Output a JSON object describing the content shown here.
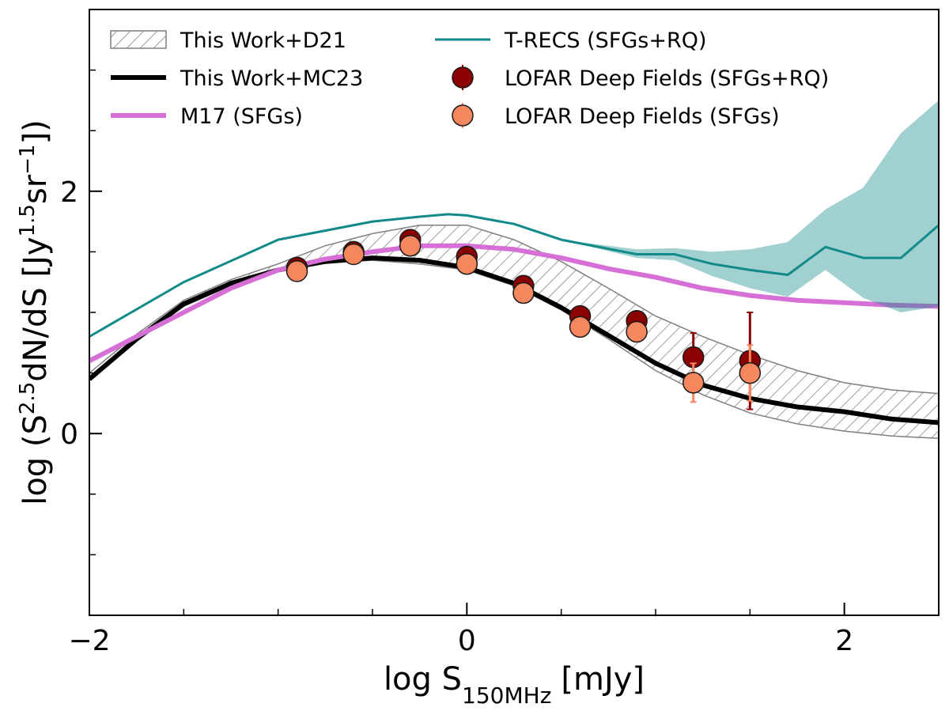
{
  "chart_data": {
    "type": "line",
    "xlabel_parts": [
      {
        "text": "log S"
      },
      {
        "text": "150MHz",
        "sub": true
      },
      {
        "text": "[mJy]"
      }
    ],
    "ylabel_parts": [
      {
        "text": "log (S"
      },
      {
        "text": "2.5",
        "sup": true
      },
      {
        "text": "dN/dS [Jy"
      },
      {
        "text": "1.5",
        "sup": true
      },
      {
        "text": "sr"
      },
      {
        "text": "−1",
        "sup": true
      },
      {
        "text": "])"
      }
    ],
    "xlim": [
      -2,
      2.5
    ],
    "ylim": [
      -1.5,
      3.5
    ],
    "xticks": [
      {
        "value": -2,
        "label": "−2"
      },
      0,
      2
    ],
    "yticks": [
      0,
      2
    ],
    "xminor_ticks": [
      -1.5,
      -1,
      -0.5,
      0.5,
      1,
      1.5
    ],
    "yminor_ticks": [
      -1,
      -0.5,
      0.5,
      1,
      1.5,
      2.5,
      3
    ],
    "legend": "upper left",
    "series": [
      {
        "name": "This Work+D21",
        "kind": "band",
        "color": "#7f7f7f",
        "x": [
          -2,
          -1.75,
          -1.5,
          -1.25,
          -1,
          -0.75,
          -0.5,
          -0.25,
          0,
          0.25,
          0.5,
          0.75,
          1,
          1.25,
          1.5,
          1.75,
          2,
          2.25,
          2.5
        ],
        "upper": [
          0.5,
          0.82,
          1.1,
          1.27,
          1.4,
          1.55,
          1.65,
          1.72,
          1.72,
          1.6,
          1.42,
          1.2,
          0.97,
          0.8,
          0.65,
          0.52,
          0.42,
          0.36,
          0.33
        ],
        "lower": [
          0.45,
          0.77,
          1.05,
          1.22,
          1.35,
          1.41,
          1.43,
          1.4,
          1.35,
          1.22,
          1.02,
          0.78,
          0.52,
          0.32,
          0.17,
          0.08,
          0.02,
          -0.02,
          -0.04
        ]
      },
      {
        "name": "This Work+MC23",
        "kind": "line",
        "color": "#000000",
        "x": [
          -2,
          -1.75,
          -1.5,
          -1.25,
          -1,
          -0.75,
          -0.5,
          -0.25,
          0,
          0.25,
          0.5,
          0.75,
          1,
          1.25,
          1.5,
          1.75,
          2,
          2.25,
          2.5
        ],
        "values": [
          0.45,
          0.78,
          1.07,
          1.24,
          1.35,
          1.42,
          1.45,
          1.43,
          1.37,
          1.24,
          1.04,
          0.81,
          0.58,
          0.4,
          0.29,
          0.22,
          0.18,
          0.12,
          0.09
        ]
      },
      {
        "name": "M17 (SFGs)",
        "kind": "line",
        "color": "#d670d6",
        "x": [
          -2,
          -1.75,
          -1.5,
          -1.25,
          -1,
          -0.75,
          -0.5,
          -0.25,
          0,
          0.25,
          0.5,
          0.75,
          1,
          1.25,
          1.5,
          1.75,
          2,
          2.25,
          2.5
        ],
        "values": [
          0.6,
          0.8,
          1.0,
          1.2,
          1.35,
          1.44,
          1.5,
          1.55,
          1.55,
          1.52,
          1.45,
          1.36,
          1.29,
          1.2,
          1.14,
          1.1,
          1.08,
          1.06,
          1.05
        ]
      },
      {
        "name": "T-RECS (SFGs+RQ)",
        "kind": "line",
        "color": "#138a8a",
        "x": [
          -2,
          -1.5,
          -1,
          -0.5,
          -0.25,
          -0.1,
          0,
          0.25,
          0.5,
          0.9,
          1.1,
          1.3,
          1.5,
          1.7,
          1.9,
          2.1,
          2.3,
          2.5
        ],
        "values": [
          0.8,
          1.25,
          1.6,
          1.75,
          1.79,
          1.81,
          1.8,
          1.73,
          1.6,
          1.48,
          1.48,
          1.4,
          1.35,
          1.31,
          1.54,
          1.45,
          1.45,
          1.72
        ],
        "band_x": [
          0.5,
          0.9,
          1.1,
          1.3,
          1.5,
          1.7,
          1.9,
          2.1,
          2.3,
          2.5
        ],
        "band_upper": [
          1.6,
          1.52,
          1.53,
          1.5,
          1.52,
          1.58,
          1.85,
          2.03,
          2.48,
          2.75
        ],
        "band_lower": [
          1.6,
          1.45,
          1.43,
          1.3,
          1.2,
          1.13,
          1.35,
          1.12,
          1.0,
          1.05
        ]
      },
      {
        "name": "LOFAR Deep Fields (SFGs+RQ)",
        "kind": "errorbar",
        "color": "#8b0000",
        "x": [
          -0.9,
          -0.6,
          -0.3,
          0,
          0.3,
          0.6,
          0.9,
          1.2,
          1.5
        ],
        "values": [
          1.37,
          1.5,
          1.6,
          1.46,
          1.22,
          0.97,
          0.93,
          0.63,
          0.6
        ],
        "errors": [
          0.03,
          0.03,
          0.03,
          0.03,
          0.03,
          0.04,
          0.05,
          0.2,
          0.4
        ]
      },
      {
        "name": "LOFAR Deep Fields (SFGs)",
        "kind": "errorbar",
        "color": "#f4875e",
        "x": [
          -0.9,
          -0.6,
          -0.3,
          0,
          0.3,
          0.6,
          0.9,
          1.2,
          1.5
        ],
        "values": [
          1.34,
          1.48,
          1.55,
          1.4,
          1.16,
          0.88,
          0.84,
          0.42,
          0.5
        ],
        "errors": [
          0.03,
          0.03,
          0.03,
          0.03,
          0.03,
          0.04,
          0.05,
          0.16,
          0.23
        ]
      }
    ]
  }
}
